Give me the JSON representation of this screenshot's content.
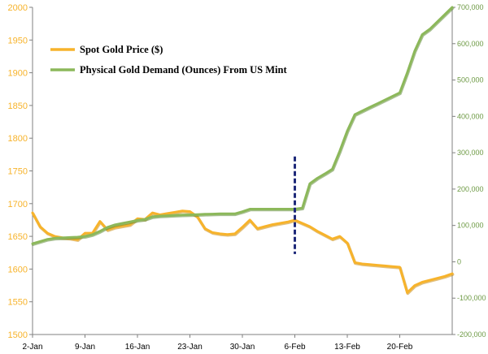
{
  "colors": {
    "gold": "#F7B32B",
    "green": "#8CB85A",
    "green_dark": "#6E9A45",
    "marker": "#1F2A7A",
    "axis": "#808080"
  },
  "chart_data": {
    "type": "line",
    "title": "",
    "xlabel": "",
    "x_ticks": [
      "2-Jan",
      "9-Jan",
      "16-Jan",
      "23-Jan",
      "30-Jan",
      "6-Feb",
      "13-Feb",
      "20-Feb"
    ],
    "x_range": [
      "2-Jan",
      "27-Feb"
    ],
    "y_left": {
      "label": "",
      "min": 1500,
      "max": 2000,
      "step": 50,
      "ticks": [
        "1500",
        "1550",
        "1600",
        "1650",
        "1700",
        "1750",
        "1800",
        "1850",
        "1900",
        "1950",
        "2000"
      ]
    },
    "y_right": {
      "label": "",
      "min": -200000,
      "max": 700000,
      "step": 100000,
      "ticks": [
        "-200,000",
        "-100,000",
        "0",
        "100,000",
        "200,000",
        "300,000",
        "400,000",
        "500,000",
        "600,000",
        "700,000"
      ]
    },
    "grid": false,
    "legend_position": "top-left",
    "series": [
      {
        "name": "Spot Gold Price ($)",
        "axis": "left",
        "color": "#F7B32B",
        "points": [
          [
            "2-Jan",
            1686
          ],
          [
            "3-Jan",
            1665
          ],
          [
            "4-Jan",
            1655
          ],
          [
            "5-Jan",
            1650
          ],
          [
            "6-Jan",
            1648
          ],
          [
            "7-Jan",
            1647
          ],
          [
            "8-Jan",
            1645
          ],
          [
            "9-Jan",
            1655
          ],
          [
            "10-Jan",
            1655
          ],
          [
            "11-Jan",
            1673
          ],
          [
            "12-Jan",
            1660
          ],
          [
            "13-Jan",
            1664
          ],
          [
            "14-Jan",
            1666
          ],
          [
            "15-Jan",
            1668
          ],
          [
            "16-Jan",
            1677
          ],
          [
            "17-Jan",
            1676
          ],
          [
            "18-Jan",
            1686
          ],
          [
            "19-Jan",
            1683
          ],
          [
            "20-Jan",
            1685
          ],
          [
            "21-Jan",
            1687
          ],
          [
            "22-Jan",
            1689
          ],
          [
            "23-Jan",
            1688
          ],
          [
            "24-Jan",
            1680
          ],
          [
            "25-Jan",
            1662
          ],
          [
            "26-Jan",
            1656
          ],
          [
            "27-Jan",
            1654
          ],
          [
            "28-Jan",
            1653
          ],
          [
            "29-Jan",
            1654
          ],
          [
            "30-Jan",
            1664
          ],
          [
            "31-Jan",
            1675
          ],
          [
            "1-Feb",
            1662
          ],
          [
            "2-Feb",
            1665
          ],
          [
            "3-Feb",
            1668
          ],
          [
            "4-Feb",
            1670
          ],
          [
            "5-Feb",
            1672
          ],
          [
            "6-Feb",
            1675
          ],
          [
            "7-Feb",
            1670
          ],
          [
            "8-Feb",
            1665
          ],
          [
            "9-Feb",
            1658
          ],
          [
            "10-Feb",
            1652
          ],
          [
            "11-Feb",
            1646
          ],
          [
            "12-Feb",
            1650
          ],
          [
            "13-Feb",
            1640
          ],
          [
            "14-Feb",
            1610
          ],
          [
            "15-Feb",
            1608
          ],
          [
            "16-Feb",
            1607
          ],
          [
            "17-Feb",
            1606
          ],
          [
            "18-Feb",
            1605
          ],
          [
            "19-Feb",
            1604
          ],
          [
            "20-Feb",
            1603
          ],
          [
            "21-Feb",
            1564
          ],
          [
            "22-Feb",
            1575
          ],
          [
            "23-Feb",
            1580
          ],
          [
            "24-Feb",
            1583
          ],
          [
            "25-Feb",
            1586
          ],
          [
            "26-Feb",
            1589
          ],
          [
            "27-Feb",
            1593
          ]
        ]
      },
      {
        "name": "Physical Gold Demand (Ounces) From US Mint",
        "axis": "right",
        "color": "#8CB85A",
        "points": [
          [
            "2-Jan",
            50000
          ],
          [
            "3-Jan",
            56000
          ],
          [
            "4-Jan",
            62000
          ],
          [
            "5-Jan",
            65000
          ],
          [
            "6-Jan",
            66000
          ],
          [
            "7-Jan",
            67000
          ],
          [
            "8-Jan",
            68000
          ],
          [
            "9-Jan",
            70000
          ],
          [
            "10-Jan",
            75000
          ],
          [
            "11-Jan",
            84000
          ],
          [
            "12-Jan",
            95000
          ],
          [
            "13-Jan",
            102000
          ],
          [
            "14-Jan",
            106000
          ],
          [
            "15-Jan",
            110000
          ],
          [
            "16-Jan",
            114000
          ],
          [
            "17-Jan",
            117000
          ],
          [
            "18-Jan",
            124000
          ],
          [
            "19-Jan",
            126000
          ],
          [
            "20-Jan",
            127000
          ],
          [
            "21-Jan",
            128000
          ],
          [
            "22-Jan",
            129000
          ],
          [
            "23-Jan",
            129500
          ],
          [
            "24-Jan",
            130000
          ],
          [
            "25-Jan",
            131000
          ],
          [
            "26-Jan",
            131500
          ],
          [
            "27-Jan",
            132000
          ],
          [
            "28-Jan",
            132000
          ],
          [
            "29-Jan",
            132000
          ],
          [
            "30-Jan",
            138000
          ],
          [
            "31-Jan",
            145000
          ],
          [
            "1-Feb",
            145000
          ],
          [
            "2-Feb",
            145000
          ],
          [
            "3-Feb",
            145000
          ],
          [
            "4-Feb",
            145000
          ],
          [
            "5-Feb",
            145000
          ],
          [
            "6-Feb",
            145000
          ],
          [
            "7-Feb",
            148000
          ],
          [
            "8-Feb",
            215000
          ],
          [
            "9-Feb",
            230000
          ],
          [
            "10-Feb",
            242000
          ],
          [
            "11-Feb",
            255000
          ],
          [
            "12-Feb",
            305000
          ],
          [
            "13-Feb",
            360000
          ],
          [
            "14-Feb",
            405000
          ],
          [
            "15-Feb",
            415000
          ],
          [
            "16-Feb",
            425000
          ],
          [
            "17-Feb",
            435000
          ],
          [
            "18-Feb",
            445000
          ],
          [
            "19-Feb",
            455000
          ],
          [
            "20-Feb",
            465000
          ],
          [
            "21-Feb",
            520000
          ],
          [
            "22-Feb",
            580000
          ],
          [
            "23-Feb",
            625000
          ],
          [
            "24-Feb",
            640000
          ],
          [
            "25-Feb",
            660000
          ],
          [
            "26-Feb",
            680000
          ],
          [
            "27-Feb",
            700000
          ]
        ]
      }
    ],
    "annotations": [
      {
        "type": "vertical-dashed-line",
        "x": "6-Feb",
        "y_from": 1623,
        "y_to": 1772,
        "axis": "left",
        "color": "#1F2A7A"
      }
    ]
  }
}
